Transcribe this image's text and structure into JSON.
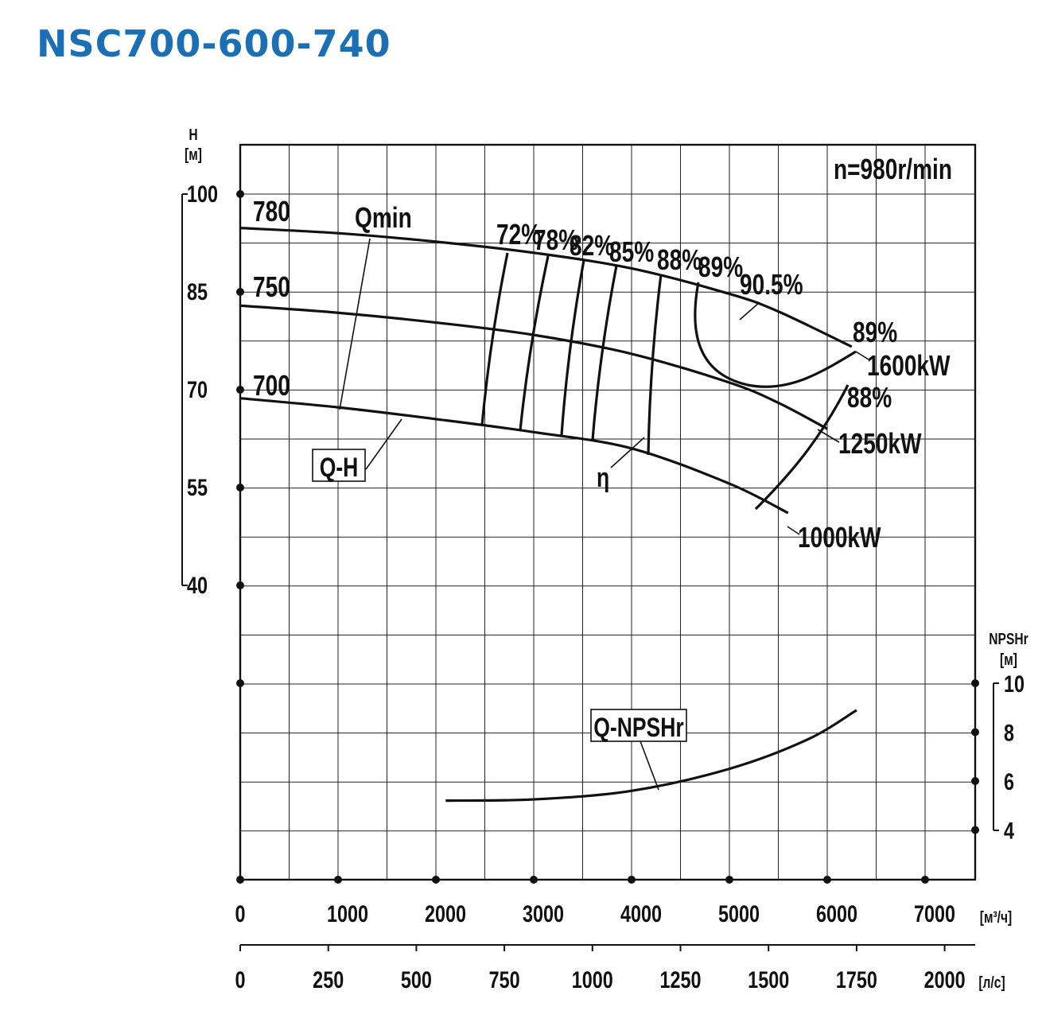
{
  "title": "NSC700-600-740",
  "chart_data": {
    "type": "line",
    "speed_note": "n=980r/min",
    "x_axis_primary": {
      "unit": "[м³/ч]",
      "range": [
        0,
        7500
      ],
      "ticks": [
        "0",
        "1000",
        "2000",
        "3000",
        "4000",
        "5000",
        "6000",
        "7000"
      ]
    },
    "x_axis_secondary": {
      "unit": "[л/с]",
      "range": [
        0,
        2083
      ],
      "ticks": [
        "0",
        "250",
        "500",
        "750",
        "1000",
        "1250",
        "1500",
        "1750",
        "2000"
      ]
    },
    "y_axis_head": {
      "label": "H",
      "unit": "[м]",
      "range": [
        40,
        100
      ],
      "ticks": [
        "100",
        "85",
        "70",
        "55",
        "40"
      ]
    },
    "y_axis_npsh": {
      "label": "NPSHr",
      "unit": "[м]",
      "range": [
        4,
        10
      ],
      "ticks": [
        "10",
        "8",
        "6",
        "4"
      ]
    },
    "series": [
      {
        "name": "780",
        "x": [
          0,
          1000,
          2000,
          3000,
          4000,
          5000,
          5500,
          6250
        ],
        "y": [
          94.8,
          94,
          92.7,
          91,
          88.6,
          84.7,
          82,
          76.6
        ]
      },
      {
        "name": "750",
        "x": [
          0,
          1000,
          2000,
          3000,
          4000,
          5000,
          5500,
          6000
        ],
        "y": [
          82.9,
          81.8,
          80.3,
          78.4,
          75.5,
          71.1,
          68,
          64
        ]
      },
      {
        "name": "700",
        "x": [
          0,
          1000,
          2000,
          3000,
          4000,
          5000,
          5600
        ],
        "y": [
          68.7,
          67.3,
          65.5,
          63.5,
          61,
          55.6,
          51.1
        ]
      },
      {
        "name": "Q-NPSHr",
        "x": [
          2100,
          3000,
          4000,
          5000,
          5800,
          6300
        ],
        "y": [
          5.2,
          5.25,
          5.6,
          6.5,
          7.7,
          8.9
        ]
      }
    ],
    "efficiency_labels": [
      "72%",
      "78%",
      "82%",
      "85%",
      "88%",
      "89%",
      "90.5%",
      "89%",
      "88%"
    ],
    "power_labels": [
      "1600kW",
      "1250kW",
      "1000kW"
    ],
    "annotations": {
      "qmin": "Qmin",
      "qh": "Q-H",
      "eta": "η",
      "qnpsh": "Q-NPSHr"
    }
  }
}
